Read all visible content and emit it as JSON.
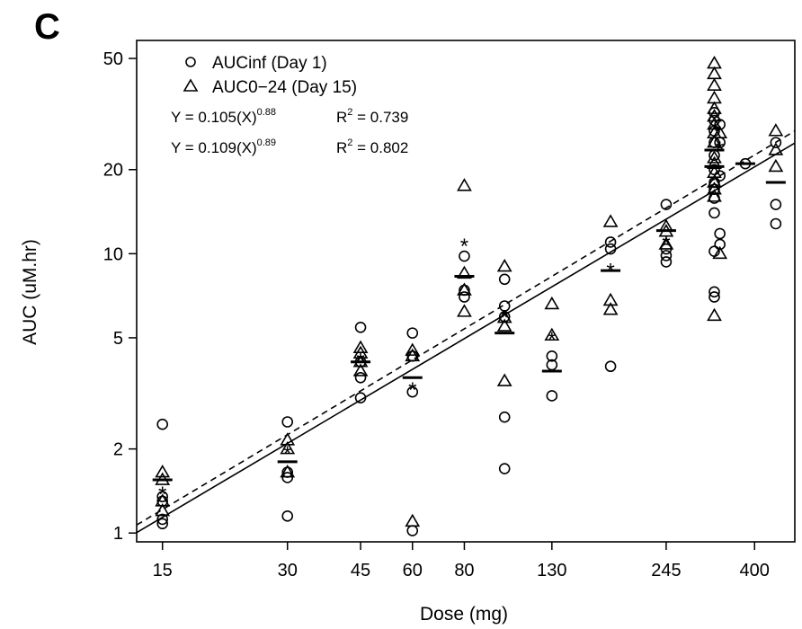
{
  "chart_data": {
    "type": "scatter",
    "panel_label": "C",
    "xlabel": "Dose (mg)",
    "ylabel": "AUC (uM.hr)",
    "x_scale": "log",
    "y_scale": "log",
    "xlim": [
      13,
      500
    ],
    "ylim": [
      0.93,
      58
    ],
    "x_ticks": [
      15,
      30,
      45,
      60,
      80,
      130,
      245,
      400
    ],
    "x_tick_labels": [
      "15",
      "30",
      "45",
      "60",
      "80",
      "130",
      "245",
      "400"
    ],
    "y_ticks": [
      1,
      2,
      5,
      10,
      20,
      50
    ],
    "y_tick_labels": [
      "1",
      "2",
      "5",
      "10",
      "20",
      "50"
    ],
    "legend_position": "top-left",
    "grid": false,
    "series": [
      {
        "name": "AUCinf (Day 1)",
        "marker": "circle",
        "points": [
          [
            15,
            2.45
          ],
          [
            15,
            1.35
          ],
          [
            15,
            1.3
          ],
          [
            15,
            1.12
          ],
          [
            15,
            1.08
          ],
          [
            30,
            2.5
          ],
          [
            30,
            1.65
          ],
          [
            30,
            1.58
          ],
          [
            30,
            1.15
          ],
          [
            45,
            5.45
          ],
          [
            45,
            4.1
          ],
          [
            45,
            3.6
          ],
          [
            45,
            3.05
          ],
          [
            60,
            5.2
          ],
          [
            60,
            4.3
          ],
          [
            60,
            3.2
          ],
          [
            60,
            1.02
          ],
          [
            80,
            9.8
          ],
          [
            80,
            7.4
          ],
          [
            80,
            7.0
          ],
          [
            100,
            8.1
          ],
          [
            100,
            6.5
          ],
          [
            100,
            5.95
          ],
          [
            100,
            2.6
          ],
          [
            100,
            1.7
          ],
          [
            130,
            4.3
          ],
          [
            130,
            4.0
          ],
          [
            130,
            3.1
          ],
          [
            180,
            11.0
          ],
          [
            180,
            10.4
          ],
          [
            180,
            3.95
          ],
          [
            245,
            15.0
          ],
          [
            245,
            10.4
          ],
          [
            245,
            9.85
          ],
          [
            245,
            9.35
          ],
          [
            320,
            32.0
          ],
          [
            320,
            30.0
          ],
          [
            320,
            27.5
          ],
          [
            320,
            25.0
          ],
          [
            320,
            22.5
          ],
          [
            320,
            20.0
          ],
          [
            320,
            18.0
          ],
          [
            320,
            17.0
          ],
          [
            320,
            15.8
          ],
          [
            320,
            14.0
          ],
          [
            320,
            10.2
          ],
          [
            320,
            7.3
          ],
          [
            320,
            7.0
          ],
          [
            330,
            29.0
          ],
          [
            330,
            25.0
          ],
          [
            330,
            19.0
          ],
          [
            330,
            11.8
          ],
          [
            330,
            10.8
          ],
          [
            380,
            21.0
          ],
          [
            450,
            25.0
          ],
          [
            450,
            15.0
          ],
          [
            450,
            12.8
          ]
        ]
      },
      {
        "name": "AUC0−24 (Day 15)",
        "marker": "triangle",
        "points": [
          [
            15,
            1.65
          ],
          [
            15,
            1.55
          ],
          [
            15,
            1.3
          ],
          [
            15,
            1.2
          ],
          [
            30,
            2.15
          ],
          [
            30,
            2.0
          ],
          [
            30,
            1.65
          ],
          [
            45,
            4.6
          ],
          [
            45,
            4.4
          ],
          [
            45,
            4.1
          ],
          [
            45,
            3.8
          ],
          [
            60,
            4.5
          ],
          [
            60,
            4.3
          ],
          [
            60,
            1.1
          ],
          [
            80,
            17.5
          ],
          [
            80,
            8.5
          ],
          [
            80,
            7.4
          ],
          [
            80,
            6.2
          ],
          [
            100,
            9.0
          ],
          [
            100,
            5.9
          ],
          [
            100,
            5.5
          ],
          [
            100,
            3.5
          ],
          [
            130,
            6.6
          ],
          [
            130,
            5.1
          ],
          [
            180,
            13.0
          ],
          [
            180,
            6.8
          ],
          [
            180,
            6.3
          ],
          [
            245,
            12.5
          ],
          [
            245,
            12.0
          ],
          [
            245,
            10.8
          ],
          [
            320,
            48.0
          ],
          [
            320,
            44.0
          ],
          [
            320,
            40.0
          ],
          [
            320,
            36.0
          ],
          [
            320,
            33.0
          ],
          [
            320,
            31.0
          ],
          [
            320,
            29.0
          ],
          [
            320,
            27.0
          ],
          [
            320,
            25.0
          ],
          [
            320,
            22.0
          ],
          [
            320,
            21.0
          ],
          [
            320,
            19.5
          ],
          [
            320,
            18.0
          ],
          [
            320,
            17.0
          ],
          [
            320,
            16.0
          ],
          [
            320,
            6.0
          ],
          [
            330,
            27.0
          ],
          [
            330,
            10.0
          ],
          [
            450,
            27.5
          ],
          [
            450,
            23.5
          ],
          [
            450,
            20.5
          ]
        ]
      }
    ],
    "medians": [
      {
        "x": 15,
        "y": 1.55
      },
      {
        "x": 30,
        "y": 1.8
      },
      {
        "x": 45,
        "y": 4.1
      },
      {
        "x": 60,
        "y": 3.6
      },
      {
        "x": 80,
        "y": 8.3
      },
      {
        "x": 100,
        "y": 5.2
      },
      {
        "x": 130,
        "y": 3.8
      },
      {
        "x": 180,
        "y": 8.7
      },
      {
        "x": 245,
        "y": 12.1
      },
      {
        "x": 320,
        "y": 23.5
      },
      {
        "x": 320,
        "y": 20.5
      },
      {
        "x": 380,
        "y": 21.0
      },
      {
        "x": 450,
        "y": 18.0
      }
    ],
    "means": [
      {
        "x": 15,
        "y": 1.4
      },
      {
        "x": 30,
        "y": 1.95
      },
      {
        "x": 45,
        "y": 4.2
      },
      {
        "x": 60,
        "y": 3.3
      },
      {
        "x": 80,
        "y": 10.8
      },
      {
        "x": 100,
        "y": 6.0
      },
      {
        "x": 130,
        "y": 5.0
      },
      {
        "x": 180,
        "y": 8.8
      },
      {
        "x": 245,
        "y": 11.0
      },
      {
        "x": 330,
        "y": 24.0
      }
    ],
    "fits": [
      {
        "name": "AUCinf (Day 1)",
        "a": 0.105,
        "b": 0.88,
        "r2": 0.739,
        "style": "solid"
      },
      {
        "name": "AUC0−24 (Day 15)",
        "a": 0.109,
        "b": 0.89,
        "r2": 0.802,
        "style": "dashed"
      }
    ],
    "equations": [
      {
        "lhs": "Y = 0.105(X)",
        "exp": "0.88",
        "r2_label": "R",
        "r2_sup": "2",
        "r2_value": " = 0.739"
      },
      {
        "lhs": "Y = 0.109(X)",
        "exp": "0.89",
        "r2_label": "R",
        "r2_sup": "2",
        "r2_value": " = 0.802"
      }
    ]
  }
}
